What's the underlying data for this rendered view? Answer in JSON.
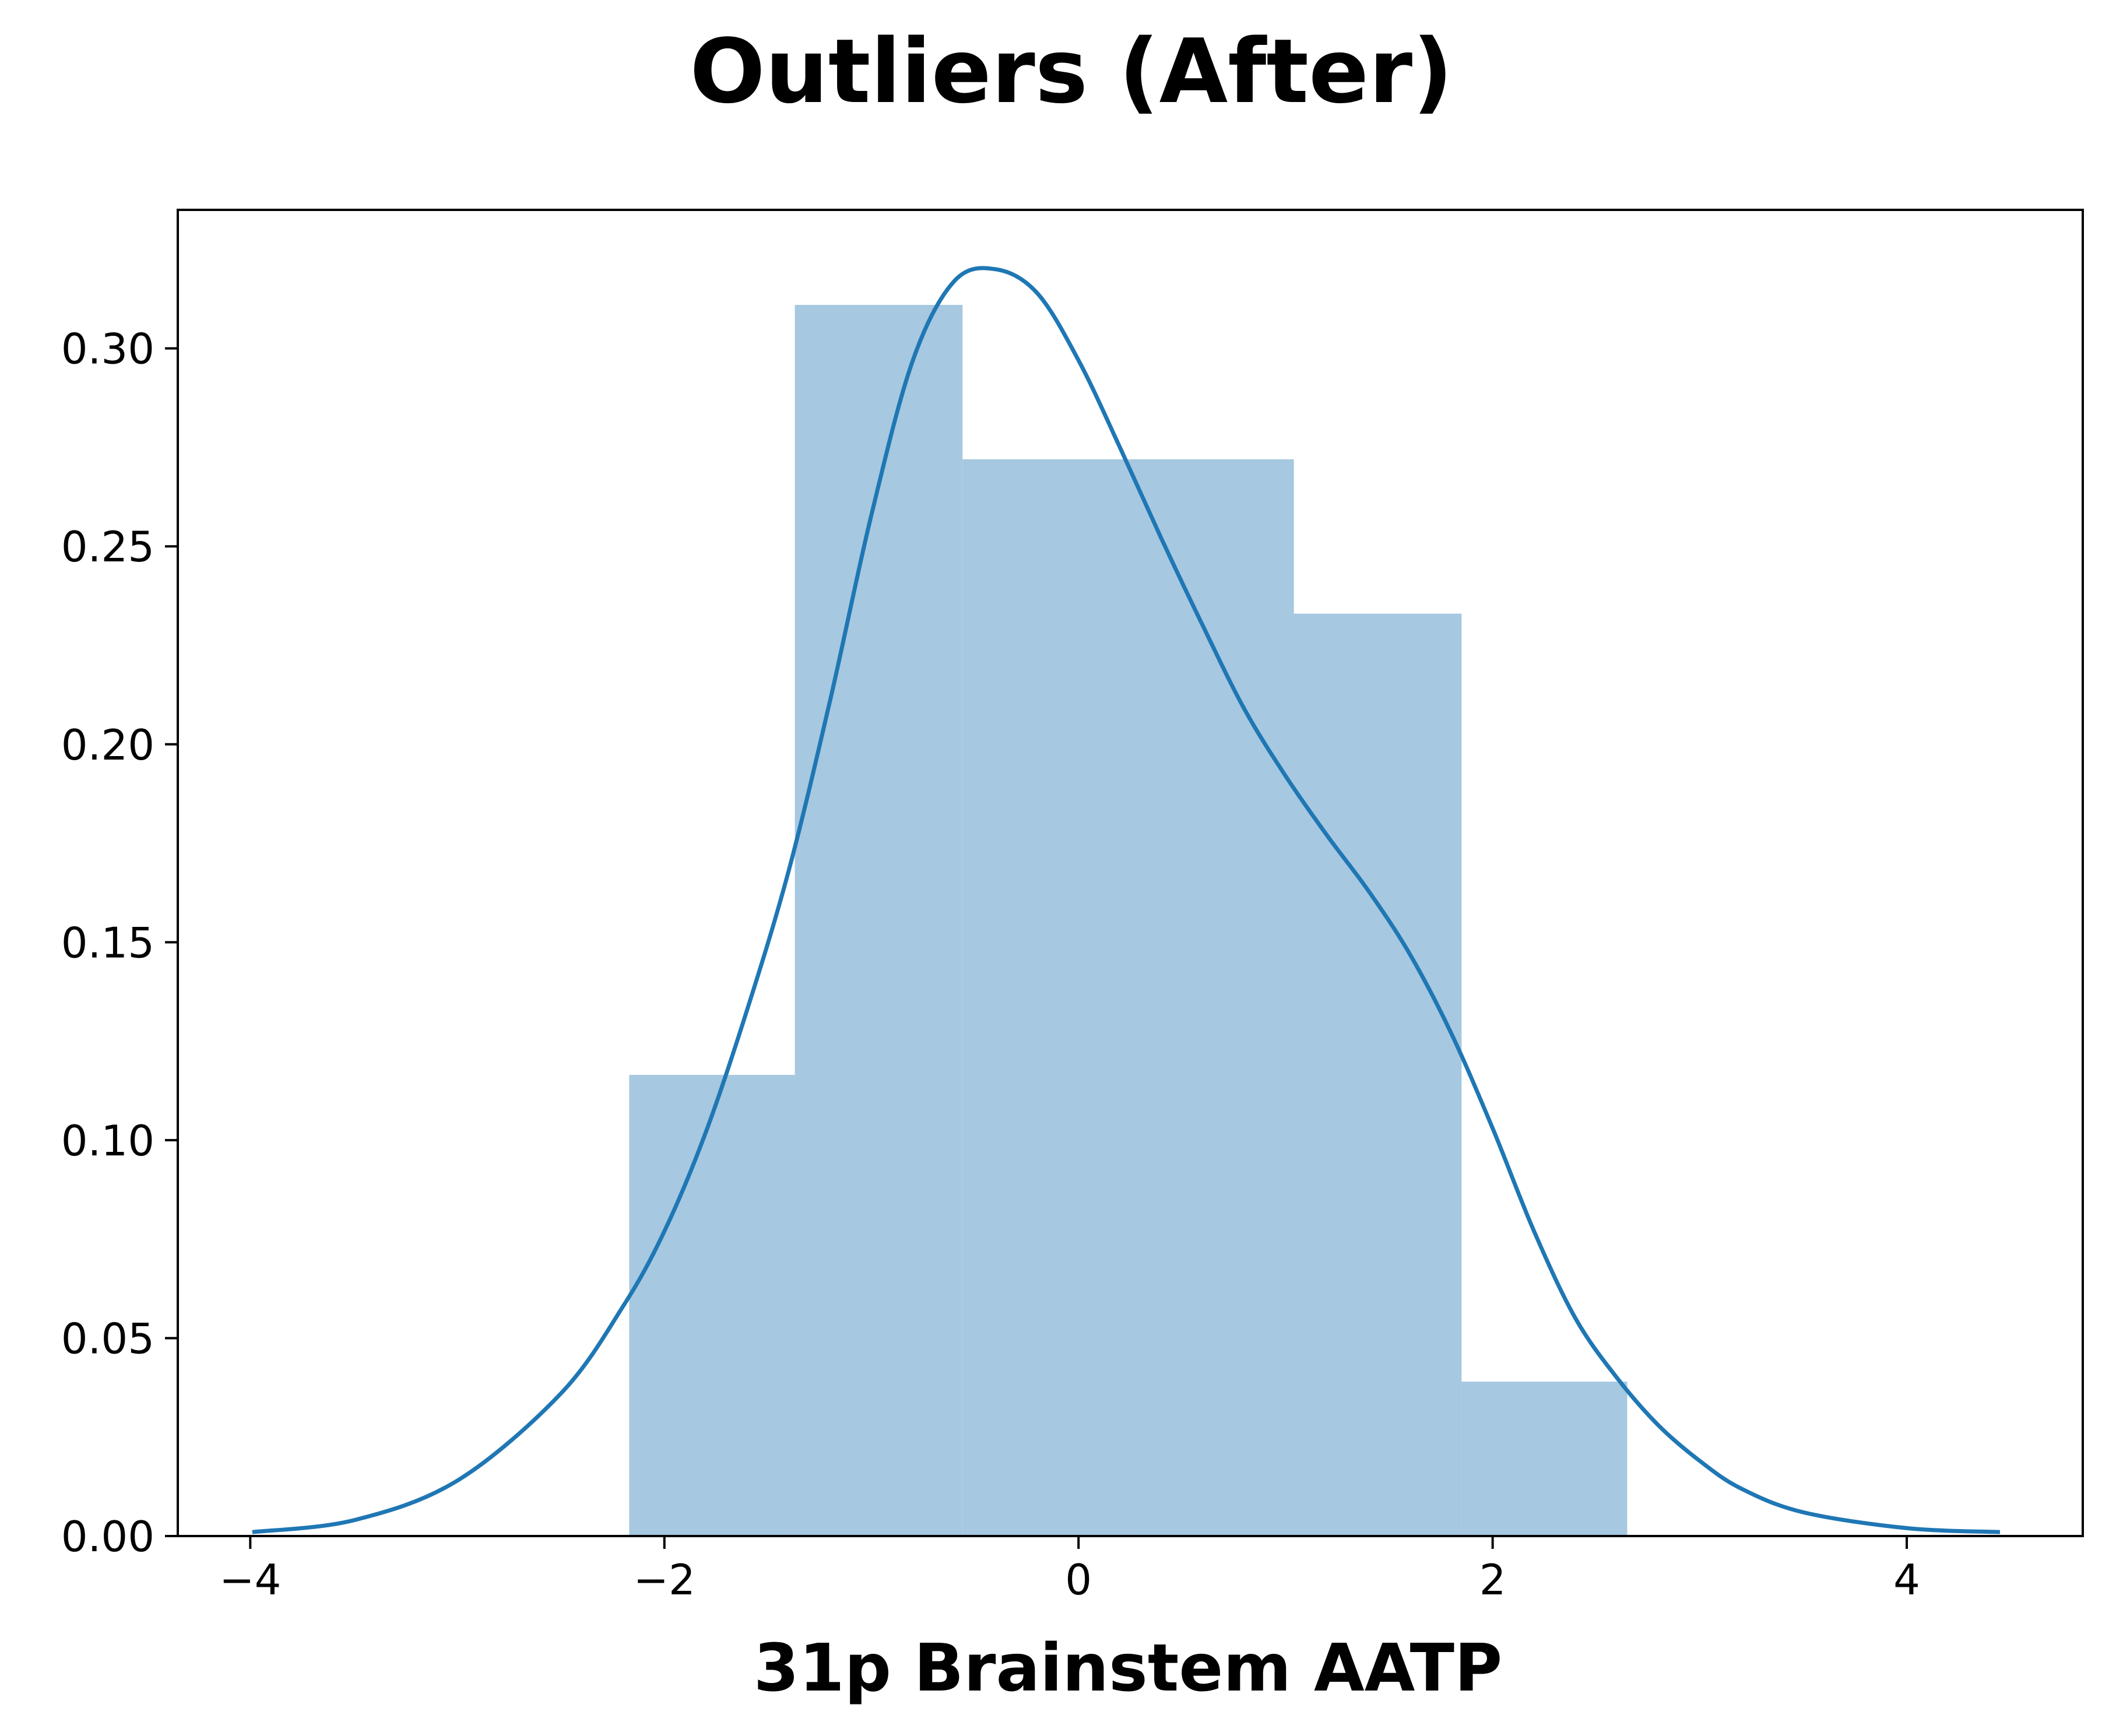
{
  "chart_data": {
    "type": "histogram",
    "title": "Outliers (After)",
    "xlabel": "31p Brainstem AATP",
    "ylabel": "",
    "xlim": [
      -4.35,
      4.85
    ],
    "ylim": [
      0,
      0.335
    ],
    "xticks": [
      -4,
      -2,
      0,
      2,
      4
    ],
    "xtick_labels": [
      "−4",
      "−2",
      "0",
      "2",
      "4"
    ],
    "yticks": [
      0.0,
      0.05,
      0.1,
      0.15,
      0.2,
      0.25,
      0.3
    ],
    "ytick_labels": [
      "0.00",
      "0.05",
      "0.10",
      "0.15",
      "0.20",
      "0.25",
      "0.30"
    ],
    "grid": false,
    "bins": [
      {
        "x0": -2.17,
        "x1": -1.37,
        "density": 0.1165
      },
      {
        "x0": -1.37,
        "x1": -0.56,
        "density": 0.311
      },
      {
        "x0": -0.56,
        "x1": 0.24,
        "density": 0.272
      },
      {
        "x0": 0.24,
        "x1": 1.04,
        "density": 0.272
      },
      {
        "x0": 1.04,
        "x1": 1.85,
        "density": 0.233
      },
      {
        "x0": 1.85,
        "x1": 2.65,
        "density": 0.039
      }
    ],
    "kde": {
      "x": [
        -3.99,
        -3.5,
        -3.0,
        -2.5,
        -2.2,
        -2.0,
        -1.8,
        -1.6,
        -1.4,
        -1.2,
        -1.0,
        -0.8,
        -0.6,
        -0.4,
        -0.2,
        0.0,
        0.2,
        0.4,
        0.6,
        0.8,
        1.0,
        1.2,
        1.4,
        1.6,
        1.8,
        2.0,
        2.2,
        2.4,
        2.6,
        2.8,
        3.0,
        3.2,
        3.5,
        4.0,
        4.45
      ],
      "y": [
        0.001,
        0.004,
        0.014,
        0.036,
        0.058,
        0.077,
        0.102,
        0.133,
        0.168,
        0.211,
        0.258,
        0.297,
        0.317,
        0.32,
        0.314,
        0.297,
        0.275,
        0.252,
        0.23,
        0.209,
        0.192,
        0.177,
        0.163,
        0.147,
        0.127,
        0.103,
        0.077,
        0.055,
        0.04,
        0.028,
        0.019,
        0.012,
        0.006,
        0.002,
        0.001
      ]
    },
    "colors": {
      "bars": "#a6c8e0",
      "kde": "#1f77b4",
      "axes": "#000000"
    }
  }
}
